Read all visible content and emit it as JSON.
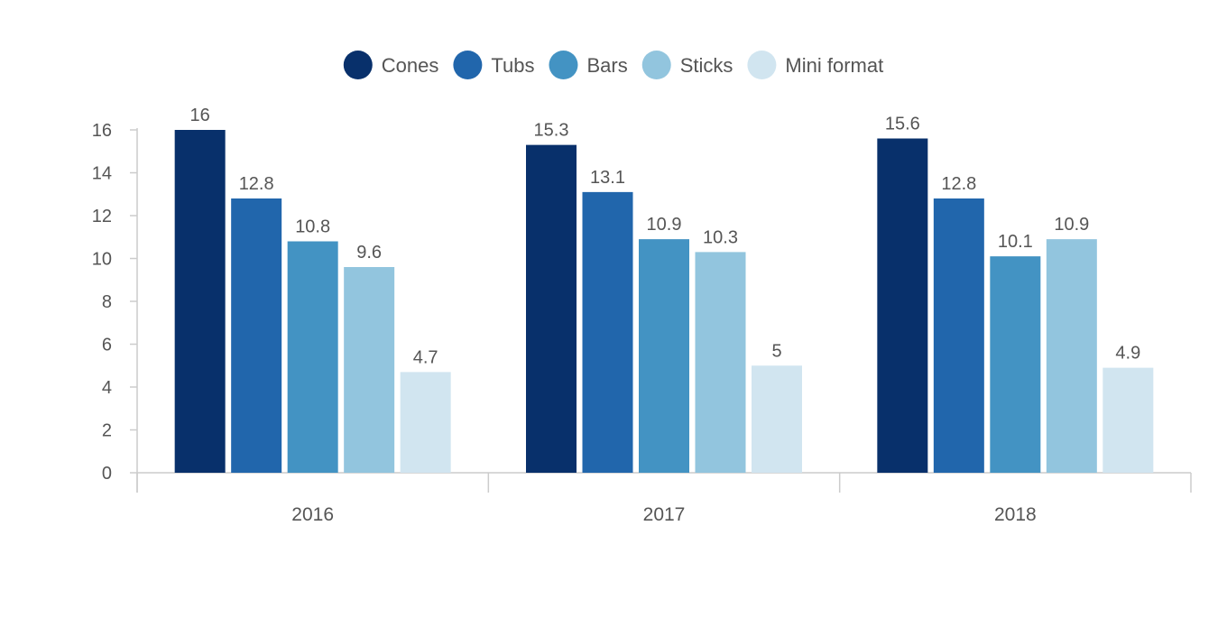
{
  "chart_data": {
    "type": "bar",
    "title": "",
    "xlabel": "",
    "ylabel": "",
    "categories": [
      "2016",
      "2017",
      "2018"
    ],
    "series": [
      {
        "name": "Cones",
        "color": "#08306b",
        "values": [
          16,
          15.3,
          15.6
        ]
      },
      {
        "name": "Tubs",
        "color": "#2166ac",
        "values": [
          12.8,
          13.1,
          12.8
        ]
      },
      {
        "name": "Bars",
        "color": "#4393c3",
        "values": [
          10.8,
          10.9,
          10.1
        ]
      },
      {
        "name": "Sticks",
        "color": "#92c5de",
        "values": [
          9.6,
          10.3,
          10.9
        ]
      },
      {
        "name": "Mini format",
        "color": "#d1e5f0",
        "values": [
          4.7,
          5,
          4.9
        ]
      }
    ],
    "ylim": [
      0,
      16
    ],
    "yticks": [
      "0",
      "2",
      "4",
      "6",
      "8",
      "10",
      "12",
      "14",
      "16"
    ],
    "legend_position": "top-center",
    "grid": false,
    "data_labels": true
  }
}
